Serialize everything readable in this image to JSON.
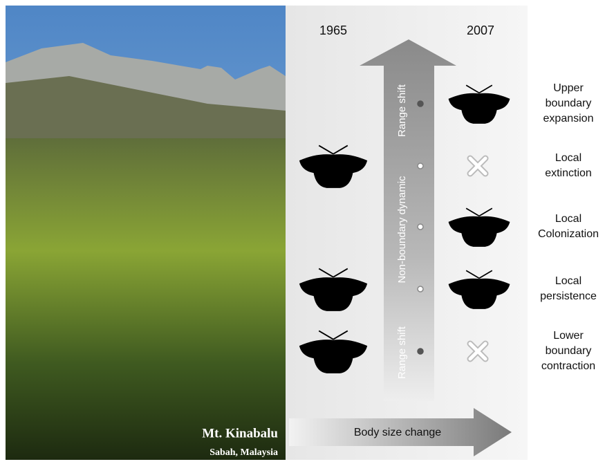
{
  "photo": {
    "caption": "Mt. Kinabalu",
    "subcaption": "Sabah, Malaysia"
  },
  "columns": [
    "1965",
    "2007"
  ],
  "arrows": {
    "upper": "Range shift",
    "middle": "Non-boundary dynamic",
    "lower": "Range shift",
    "horizontal": "Body size change"
  },
  "rows": [
    {
      "label": [
        "Upper",
        "boundary",
        "expansion"
      ],
      "then": "none",
      "now": "moth",
      "dot": "filled"
    },
    {
      "label": [
        "Local",
        "extinction"
      ],
      "then": "moth",
      "now": "cross",
      "dot": "open"
    },
    {
      "label": [
        "Local",
        "Colonization"
      ],
      "then": "none",
      "now": "moth",
      "dot": "open"
    },
    {
      "label": [
        "Local",
        "persistence"
      ],
      "then": "moth",
      "now": "moth",
      "dot": "open"
    },
    {
      "label": [
        "Lower",
        "boundary",
        "contraction"
      ],
      "then": "moth",
      "now": "cross",
      "dot": "filled"
    }
  ]
}
